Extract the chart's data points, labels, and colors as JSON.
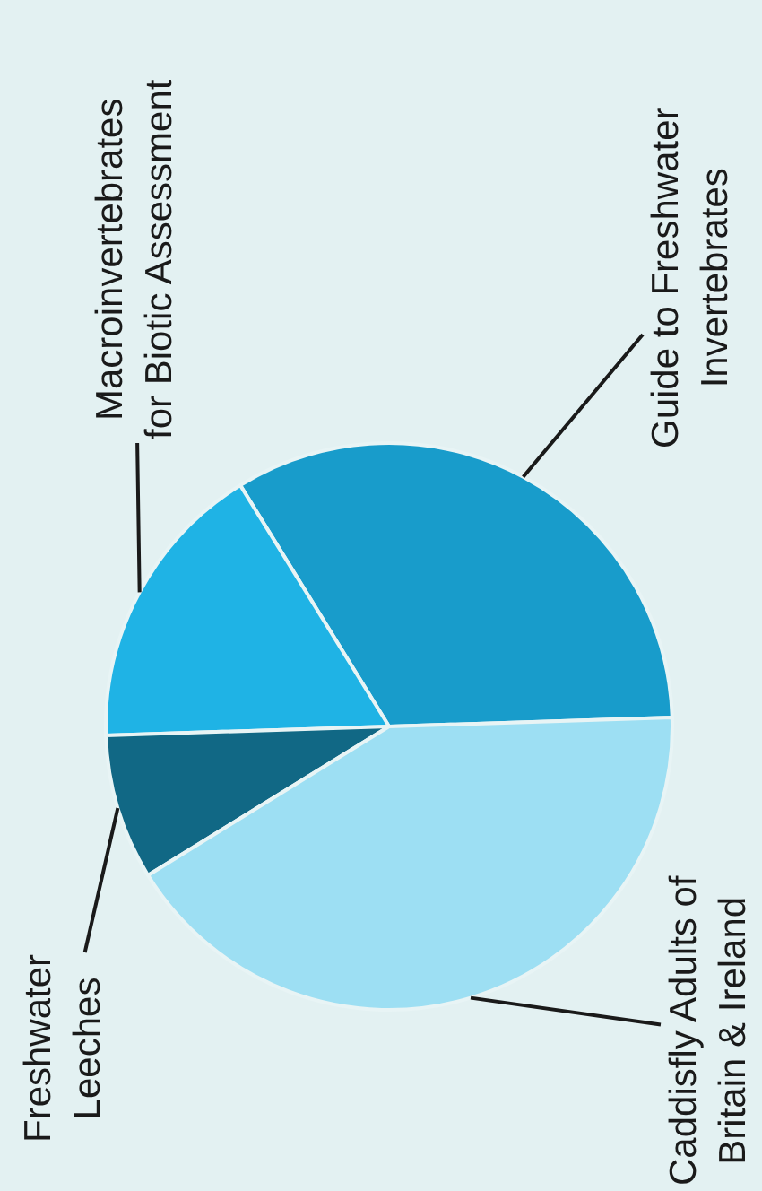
{
  "chart_data": {
    "type": "pie",
    "categories": [
      "Guide to Freshwater Invertebrates",
      "Macroinvertebrates for Biotic Assessment",
      "Freshwater Leeches",
      "Caddisfly Adults of Britain & Ireland"
    ],
    "values": [
      33.3,
      16.7,
      8.3,
      41.7
    ],
    "colors": [
      "#189ccb",
      "#1fb3e5",
      "#116885",
      "#9ddff3"
    ]
  }
}
